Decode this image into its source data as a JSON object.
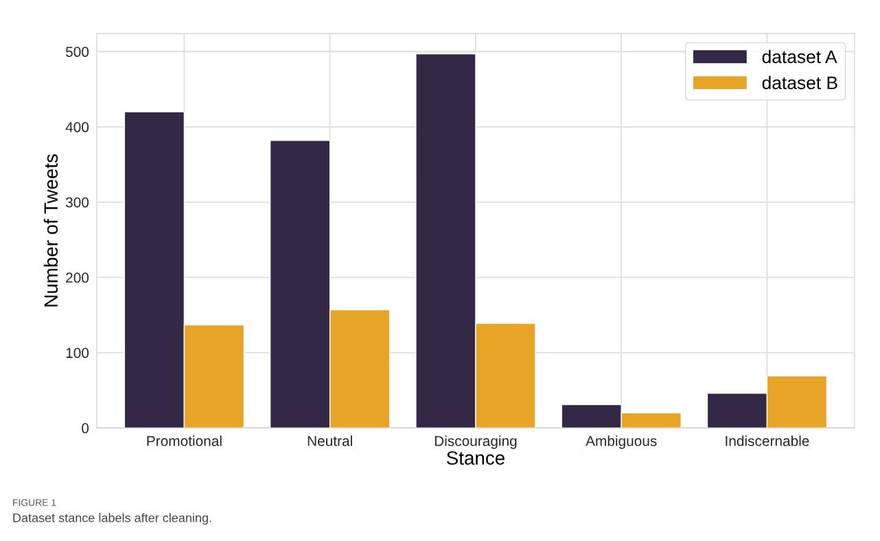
{
  "chart_data": {
    "type": "bar",
    "xlabel": "Stance",
    "ylabel": "Number of Tweets",
    "categories": [
      "Promotional",
      "Neutral",
      "Discouraging",
      "Ambiguous",
      "Indiscernable"
    ],
    "series": [
      {
        "name": "dataset A",
        "color": "#332846",
        "values": [
          420,
          382,
          497,
          31,
          46
        ]
      },
      {
        "name": "dataset B",
        "color": "#e8a427",
        "values": [
          137,
          157,
          139,
          20,
          69
        ]
      }
    ],
    "ylim": [
      0,
      524
    ],
    "yticks": [
      0,
      100,
      200,
      300,
      400,
      500
    ],
    "grid": true,
    "legend": "top right",
    "annotations": [
      "FIGURE 1",
      "Dataset stance labels after cleaning."
    ]
  }
}
